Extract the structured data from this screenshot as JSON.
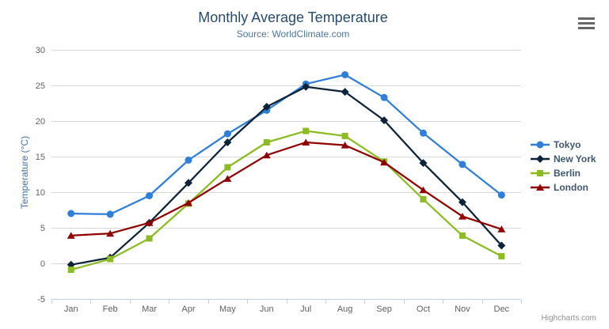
{
  "header": {
    "title": "Monthly Average Temperature",
    "subtitle": "Source: WorldClimate.com"
  },
  "credits": {
    "label": "Highcharts.com"
  },
  "chart_data": {
    "type": "line",
    "title": "Monthly Average Temperature",
    "subtitle": "Source: WorldClimate.com",
    "xlabel": "",
    "ylabel": "Temperature (°C)",
    "ylim": [
      -5,
      30
    ],
    "ytick_step": 5,
    "grid": true,
    "legend_position": "right",
    "categories": [
      "Jan",
      "Feb",
      "Mar",
      "Apr",
      "May",
      "Jun",
      "Jul",
      "Aug",
      "Sep",
      "Oct",
      "Nov",
      "Dec"
    ],
    "series": [
      {
        "name": "Tokyo",
        "color": "#2f7ed8",
        "marker": "circle",
        "values": [
          7.0,
          6.9,
          9.5,
          14.5,
          18.2,
          21.5,
          25.2,
          26.5,
          23.3,
          18.3,
          13.9,
          9.6
        ]
      },
      {
        "name": "New York",
        "color": "#0d233a",
        "marker": "diamond",
        "values": [
          -0.2,
          0.8,
          5.7,
          11.3,
          17.0,
          22.0,
          24.8,
          24.1,
          20.1,
          14.1,
          8.6,
          2.5
        ]
      },
      {
        "name": "Berlin",
        "color": "#8bbc21",
        "marker": "square",
        "values": [
          -0.9,
          0.6,
          3.5,
          8.4,
          13.5,
          17.0,
          18.6,
          17.9,
          14.3,
          9.0,
          3.9,
          1.0
        ]
      },
      {
        "name": "London",
        "color": "#910000",
        "marker": "triangle",
        "values": [
          3.9,
          4.2,
          5.7,
          8.5,
          11.9,
          15.2,
          17.0,
          16.6,
          14.2,
          10.3,
          6.6,
          4.8
        ]
      }
    ]
  },
  "theme": {
    "title_color": "#274b6d",
    "subtitle_color": "#4d759e",
    "axis_title_color": "#4572a7",
    "axis_label_color": "#606060",
    "legend_text_color": "#3e576f",
    "grid_color": "#d8d8d8",
    "axis_line_color": "#c0d0e0",
    "tick_color": "#c0d0e0",
    "menu_icon_color": "#666666",
    "credits_color": "#909090",
    "background": "#ffffff"
  }
}
